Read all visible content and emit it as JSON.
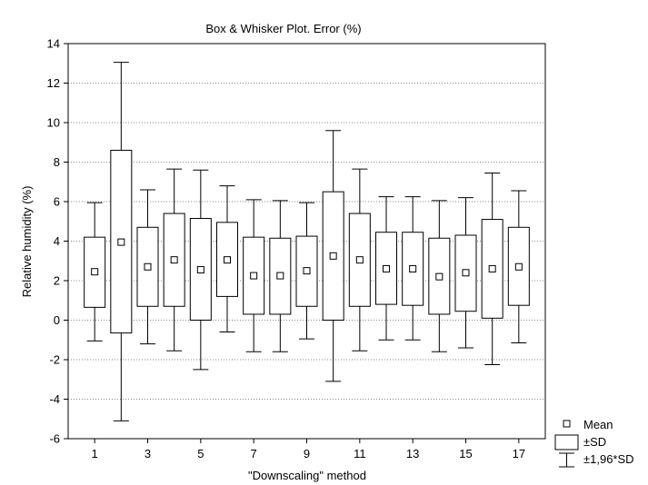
{
  "chart_data": {
    "type": "box",
    "title": "Box & Whisker Plot. Error (%)",
    "xlabel": "\"Downscaling\" method",
    "ylabel": "Relative humidity (%)",
    "ylim": [
      -6,
      14
    ],
    "xlim": [
      0,
      18
    ],
    "grid": "horizontal dotted",
    "yticks": [
      -6,
      -4,
      -2,
      0,
      2,
      4,
      6,
      8,
      10,
      12,
      14
    ],
    "xtick_labels": [
      "1",
      "3",
      "5",
      "7",
      "9",
      "11",
      "13",
      "15",
      "17"
    ],
    "legend_position": "bottom-right, outside plot",
    "legend": {
      "mean": "Mean",
      "sd": "±SD",
      "ci": "±1,96*SD"
    },
    "categories": [
      1,
      2,
      3,
      4,
      5,
      6,
      7,
      8,
      9,
      10,
      11,
      12,
      13,
      14,
      15,
      16,
      17
    ],
    "mean": [
      2.45,
      3.95,
      2.7,
      3.05,
      2.55,
      3.05,
      2.25,
      2.25,
      2.5,
      3.25,
      3.05,
      2.6,
      2.6,
      2.2,
      2.4,
      2.6,
      2.7
    ],
    "sd_low": [
      0.65,
      -0.65,
      0.7,
      0.7,
      0.0,
      1.2,
      0.3,
      0.3,
      0.7,
      0.0,
      0.7,
      0.8,
      0.75,
      0.3,
      0.45,
      0.1,
      0.75
    ],
    "sd_high": [
      4.2,
      8.6,
      4.7,
      5.4,
      5.15,
      4.95,
      4.2,
      4.15,
      4.25,
      6.5,
      5.4,
      4.45,
      4.45,
      4.15,
      4.3,
      5.1,
      4.7
    ],
    "ci_low": [
      -1.05,
      -5.1,
      -1.2,
      -1.55,
      -2.5,
      -0.6,
      -1.6,
      -1.6,
      -0.95,
      -3.1,
      -1.55,
      -1.0,
      -1.0,
      -1.6,
      -1.4,
      -2.25,
      -1.15
    ],
    "ci_high": [
      5.95,
      13.05,
      6.6,
      7.65,
      7.6,
      6.8,
      6.1,
      6.05,
      5.95,
      9.6,
      7.65,
      6.25,
      6.25,
      6.05,
      6.2,
      7.45,
      6.55
    ]
  }
}
